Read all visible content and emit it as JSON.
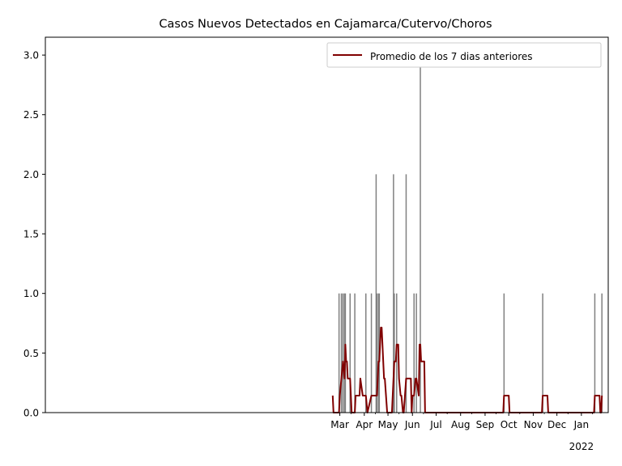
{
  "chart_data": {
    "type": "bar",
    "title": "Casos Nuevos Detectados en Cajamarca/Cutervo/Choros",
    "xlabel": "",
    "ylabel": "",
    "x_start": "2020-02-22",
    "x_end": "2022-02-04",
    "ylim": [
      0,
      3.15
    ],
    "yticks": [
      0.0,
      0.5,
      1.0,
      1.5,
      2.0,
      2.5,
      3.0
    ],
    "ytick_labels": [
      "0.0",
      "0.5",
      "1.0",
      "1.5",
      "2.0",
      "2.5",
      "3.0"
    ],
    "xticks": [
      {
        "date": "2021-03-01",
        "label": "Mar"
      },
      {
        "date": "2021-04-01",
        "label": "Apr"
      },
      {
        "date": "2021-05-01",
        "label": "May"
      },
      {
        "date": "2021-06-01",
        "label": "Jun"
      },
      {
        "date": "2021-07-01",
        "label": "Jul"
      },
      {
        "date": "2021-08-01",
        "label": "Aug"
      },
      {
        "date": "2021-09-01",
        "label": "Sep"
      },
      {
        "date": "2021-10-01",
        "label": "Oct"
      },
      {
        "date": "2021-11-01",
        "label": "Nov"
      },
      {
        "date": "2021-12-01",
        "label": "Dec"
      },
      {
        "date": "2022-01-01",
        "label": "Jan"
      }
    ],
    "xtick_year_label": "2022",
    "grid": false,
    "legend_position": "top-right",
    "bar_color": "#808080",
    "line_color": "#800000",
    "bars": {
      "dates": [
        "2021-02-28",
        "2021-03-03",
        "2021-03-05",
        "2021-03-07",
        "2021-03-08",
        "2021-03-14",
        "2021-03-20",
        "2021-04-03",
        "2021-04-10",
        "2021-04-16",
        "2021-04-17",
        "2021-04-19",
        "2021-04-20",
        "2021-05-08",
        "2021-05-09",
        "2021-05-12",
        "2021-05-24",
        "2021-06-03",
        "2021-06-06",
        "2021-06-11",
        "2021-09-25",
        "2021-11-13",
        "2022-01-18",
        "2022-01-27"
      ],
      "values": [
        1,
        1,
        1,
        1,
        1,
        1,
        1,
        1,
        1,
        2,
        1,
        1,
        1,
        2,
        1,
        1,
        2,
        1,
        1,
        3,
        1,
        1,
        1,
        1
      ]
    },
    "series": [
      {
        "name": "Promedio de los 7 dias anteriores",
        "dates": [
          "2021-02-20",
          "2021-02-21",
          "2021-02-28",
          "2021-03-01",
          "2021-03-03",
          "2021-03-05",
          "2021-03-07",
          "2021-03-08",
          "2021-03-09",
          "2021-03-10",
          "2021-03-11",
          "2021-03-14",
          "2021-03-15",
          "2021-03-16",
          "2021-03-20",
          "2021-03-21",
          "2021-03-22",
          "2021-03-26",
          "2021-03-27",
          "2021-03-30",
          "2021-04-03",
          "2021-04-05",
          "2021-04-10",
          "2021-04-16",
          "2021-04-17",
          "2021-04-19",
          "2021-04-20",
          "2021-04-22",
          "2021-04-23",
          "2021-04-26",
          "2021-04-27",
          "2021-04-30",
          "2021-05-06",
          "2021-05-08",
          "2021-05-09",
          "2021-05-11",
          "2021-05-12",
          "2021-05-14",
          "2021-05-15",
          "2021-05-17",
          "2021-05-18",
          "2021-05-20",
          "2021-05-21",
          "2021-05-24",
          "2021-05-30",
          "2021-05-31",
          "2021-06-01",
          "2021-06-03",
          "2021-06-05",
          "2021-06-06",
          "2021-06-09",
          "2021-06-10",
          "2021-06-11",
          "2021-06-12",
          "2021-06-16",
          "2021-06-17",
          "2021-09-24",
          "2021-09-25",
          "2021-10-01",
          "2021-10-02",
          "2021-11-12",
          "2021-11-13",
          "2021-11-19",
          "2021-11-20",
          "2022-01-17",
          "2022-01-18",
          "2022-01-24",
          "2022-01-25",
          "2022-01-26",
          "2022-01-27"
        ],
        "values": [
          0.143,
          0,
          0,
          0.143,
          0.286,
          0.429,
          0.286,
          0.571,
          0.429,
          0.429,
          0.286,
          0.286,
          0.143,
          0,
          0,
          0.143,
          0.143,
          0.143,
          0.286,
          0.143,
          0.143,
          0,
          0.143,
          0.143,
          0.143,
          0.429,
          0.429,
          0.714,
          0.714,
          0.286,
          0.286,
          0,
          0,
          0.286,
          0.429,
          0.429,
          0.571,
          0.571,
          0.286,
          0.143,
          0.143,
          0,
          0,
          0.286,
          0.286,
          0,
          0.143,
          0.143,
          0.286,
          0.286,
          0.143,
          0.571,
          0.571,
          0.429,
          0.429,
          0,
          0,
          0.143,
          0.143,
          0,
          0,
          0.143,
          0.143,
          0,
          0,
          0.143,
          0.143,
          0,
          0,
          0.143
        ]
      }
    ]
  }
}
